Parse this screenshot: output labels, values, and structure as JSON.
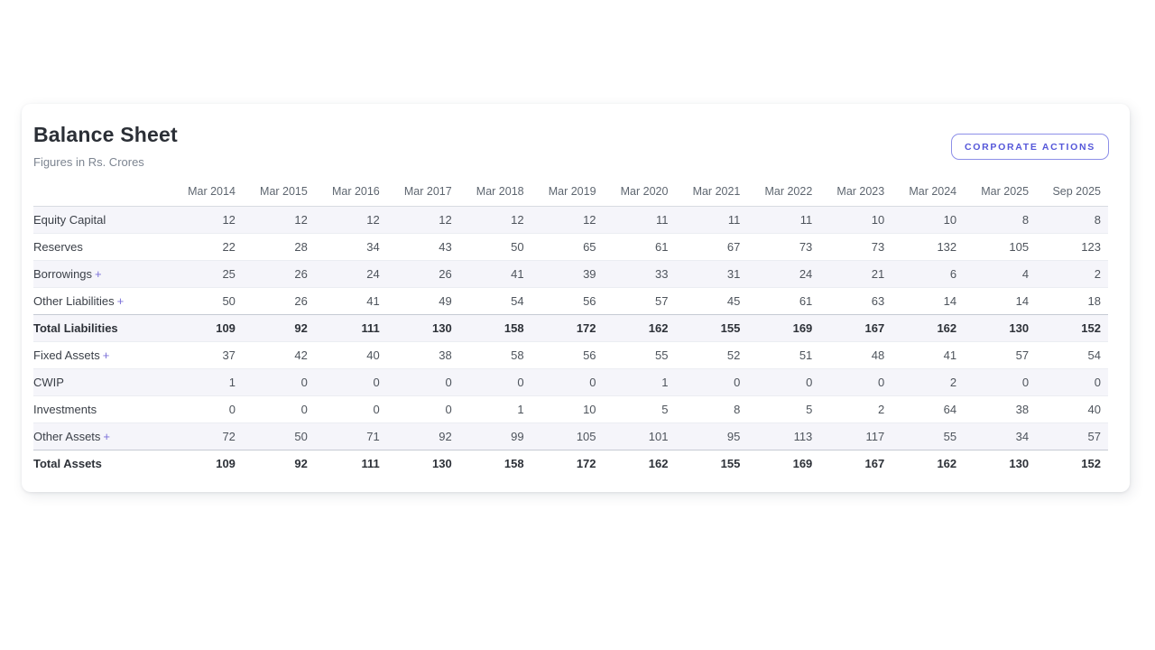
{
  "page": {
    "title": "Balance Sheet",
    "subtitle": "Figures in Rs. Crores"
  },
  "toolbar": {
    "corporate_actions_label": "CORPORATE ACTIONS"
  },
  "colors": {
    "accent": "#5557d9",
    "accent_border": "#8d8fe8",
    "row_stripe": "#f5f5fa",
    "total_border": "#c6cad3",
    "plus": "#7a6fd8"
  },
  "table": {
    "columns": [
      "Mar 2014",
      "Mar 2015",
      "Mar 2016",
      "Mar 2017",
      "Mar 2018",
      "Mar 2019",
      "Mar 2020",
      "Mar 2021",
      "Mar 2022",
      "Mar 2023",
      "Mar 2024",
      "Mar 2025",
      "Sep 2025"
    ],
    "rows": [
      {
        "label": "Equity Capital",
        "suffix": "",
        "emphasis": false,
        "values": [
          12,
          12,
          12,
          12,
          12,
          12,
          11,
          11,
          11,
          10,
          10,
          8,
          8
        ]
      },
      {
        "label": "Reserves",
        "suffix": "",
        "emphasis": false,
        "values": [
          22,
          28,
          34,
          43,
          50,
          65,
          61,
          67,
          73,
          73,
          132,
          105,
          123
        ]
      },
      {
        "label": "Borrowings",
        "suffix": "+",
        "emphasis": false,
        "values": [
          25,
          26,
          24,
          26,
          41,
          39,
          33,
          31,
          24,
          21,
          6,
          4,
          2
        ]
      },
      {
        "label": "Other Liabilities",
        "suffix": "+",
        "emphasis": false,
        "values": [
          50,
          26,
          41,
          49,
          54,
          56,
          57,
          45,
          61,
          63,
          14,
          14,
          18
        ]
      },
      {
        "label": "Total Liabilities",
        "suffix": "",
        "emphasis": true,
        "values": [
          109,
          92,
          111,
          130,
          158,
          172,
          162,
          155,
          169,
          167,
          162,
          130,
          152
        ]
      },
      {
        "label": "Fixed Assets",
        "suffix": "+",
        "emphasis": false,
        "values": [
          37,
          42,
          40,
          38,
          58,
          56,
          55,
          52,
          51,
          48,
          41,
          57,
          54
        ]
      },
      {
        "label": "CWIP",
        "suffix": "",
        "emphasis": false,
        "values": [
          1,
          0,
          0,
          0,
          0,
          0,
          1,
          0,
          0,
          0,
          2,
          0,
          0
        ]
      },
      {
        "label": "Investments",
        "suffix": "",
        "emphasis": false,
        "values": [
          0,
          0,
          0,
          0,
          1,
          10,
          5,
          8,
          5,
          2,
          64,
          38,
          40
        ]
      },
      {
        "label": "Other Assets",
        "suffix": "+",
        "emphasis": false,
        "values": [
          72,
          50,
          71,
          92,
          99,
          105,
          101,
          95,
          113,
          117,
          55,
          34,
          57
        ]
      },
      {
        "label": "Total Assets",
        "suffix": "",
        "emphasis": true,
        "values": [
          109,
          92,
          111,
          130,
          158,
          172,
          162,
          155,
          169,
          167,
          162,
          130,
          152
        ]
      }
    ]
  }
}
